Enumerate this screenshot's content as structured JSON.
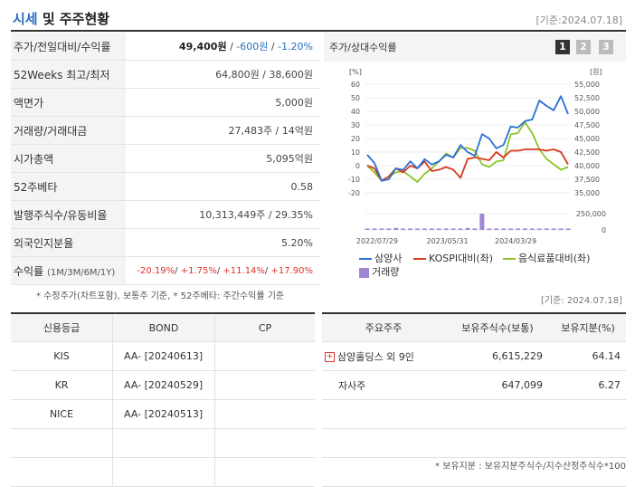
{
  "header": {
    "title_a": "시세",
    "title_b": "및 주주현황",
    "date": "[기준:2024.07.18]"
  },
  "info_rows": [
    {
      "label": "주가/전일대비/수익률",
      "v1": "49,400원",
      "v2": "-600원",
      "v3": "-1.20%"
    },
    {
      "label": "52Weeks 최고/최저",
      "value": "64,800원 / 38,600원"
    },
    {
      "label": "액면가",
      "value": "5,000원"
    },
    {
      "label": "거래량/거래대금",
      "value": "27,483주 / 14억원"
    },
    {
      "label": "시가총액",
      "value": "5,095억원"
    },
    {
      "label": "52주베타",
      "value": "0.58"
    },
    {
      "label": "발행주식수/유동비율",
      "value": "10,313,449주 / 29.35%"
    },
    {
      "label": "외국인지분율",
      "value": "5.20%"
    },
    {
      "label": "수익률",
      "sub": "(1M/3M/6M/1Y)",
      "r1": "-20.19%",
      "r2": "+1.75%",
      "r3": "+11.14%",
      "r4": "+17.90%"
    }
  ],
  "notes": {
    "left": "* 수정주가(차트포함), 보통주 기준, * 52주베타: 주간수익률 기준",
    "right": "[기준: 2024.07.18]",
    "bottom": "* 보유지분 : 보유지분주식수/지수산정주식수*100"
  },
  "chart_panel": {
    "title": "주가/상대수익률",
    "buttons": [
      "1",
      "2",
      "3"
    ]
  },
  "chart_data": {
    "type": "line",
    "x_ticks": [
      "2022/07/29",
      "2023/05/31",
      "2024/03/29"
    ],
    "left_axis": {
      "unit": "[%]",
      "ticks": [
        "60",
        "50",
        "40",
        "30",
        "20",
        "10",
        "0",
        "-10",
        "-20"
      ],
      "ylim": [
        -20,
        60
      ]
    },
    "right_axis": {
      "unit": "[원]",
      "ticks": [
        "55,000",
        "52,500",
        "50,000",
        "47,500",
        "45,000",
        "42,500",
        "40,000",
        "37,500",
        "35,000"
      ],
      "ylim": [
        35000,
        55000
      ]
    },
    "volume_axis": {
      "ticks": [
        "250,000",
        "0"
      ],
      "ylim": [
        0,
        250000
      ]
    },
    "series": [
      {
        "name": "삼양사",
        "color": "#2a6fd6",
        "axis": "right",
        "values": [
          42000,
          40500,
          37200,
          37500,
          39500,
          39200,
          40800,
          39500,
          41200,
          40200,
          40800,
          42000,
          41500,
          43800,
          42500,
          41800,
          45800,
          45000,
          43200,
          43800,
          47200,
          47000,
          48200,
          48500,
          52000,
          51000,
          50200,
          52800,
          49500
        ]
      },
      {
        "name": "KOSPI대비(좌)",
        "color": "#d83a1e",
        "axis": "left",
        "values": [
          0,
          -2,
          -11,
          -8,
          -2,
          -5,
          0,
          -2,
          3,
          -4,
          -3,
          -1,
          -3,
          -9,
          5,
          6,
          5,
          4,
          10,
          6,
          11,
          11,
          12,
          12,
          12,
          11,
          12,
          10,
          1
        ]
      },
      {
        "name": "음식료품대비(좌)",
        "color": "#8dc42a",
        "axis": "left",
        "values": [
          0,
          -5,
          -11,
          -8,
          -5,
          -4,
          -8,
          -12,
          -6,
          -2,
          3,
          9,
          6,
          13,
          13,
          11,
          1,
          -1,
          3,
          4,
          23,
          24,
          32,
          24,
          12,
          5,
          1,
          -3,
          -1
        ]
      }
    ],
    "volume": {
      "name": "거래량",
      "color": "#9f87d4",
      "values": [
        12000,
        15000,
        18000,
        10000,
        30000,
        8000,
        14000,
        16000,
        9000,
        11000,
        12000,
        15000,
        10000,
        9000,
        30000,
        12000,
        250000,
        20000,
        14000,
        12000,
        10000,
        18000,
        22000,
        16000,
        19000,
        15000,
        14000,
        17000,
        20000
      ]
    }
  },
  "legend": [
    {
      "label": "삼양사",
      "color": "#2a6fd6",
      "kind": "line"
    },
    {
      "label": "KOSPI대비(좌)",
      "color": "#d83a1e",
      "kind": "line"
    },
    {
      "label": "음식료품대비(좌)",
      "color": "#8dc42a",
      "kind": "line"
    },
    {
      "label": "거래량",
      "color": "#9f87d4",
      "kind": "box"
    }
  ],
  "credit": {
    "headers": [
      "신용등급",
      "BOND",
      "CP"
    ],
    "rows": [
      {
        "agency": "KIS",
        "bond": "AA- [20240613]",
        "cp": ""
      },
      {
        "agency": "KR",
        "bond": "AA- [20240529]",
        "cp": ""
      },
      {
        "agency": "NICE",
        "bond": "AA- [20240513]",
        "cp": ""
      },
      {
        "agency": "",
        "bond": "",
        "cp": ""
      },
      {
        "agency": "",
        "bond": "",
        "cp": ""
      }
    ]
  },
  "shareholders": {
    "headers": [
      "주요주주",
      "보유주식수(보통)",
      "보유지분(%)"
    ],
    "rows": [
      {
        "name": "삼양홀딩스 외 9인",
        "shares": "6,615,229",
        "pct": "64.14",
        "expand": "+"
      },
      {
        "name": "자사주",
        "shares": "647,099",
        "pct": "6.27",
        "expand": ""
      },
      {
        "name": "",
        "shares": "",
        "pct": "",
        "expand": ""
      },
      {
        "name": "",
        "shares": "",
        "pct": "",
        "expand": ""
      },
      {
        "name": "",
        "shares": "",
        "pct": "",
        "expand": ""
      }
    ]
  }
}
